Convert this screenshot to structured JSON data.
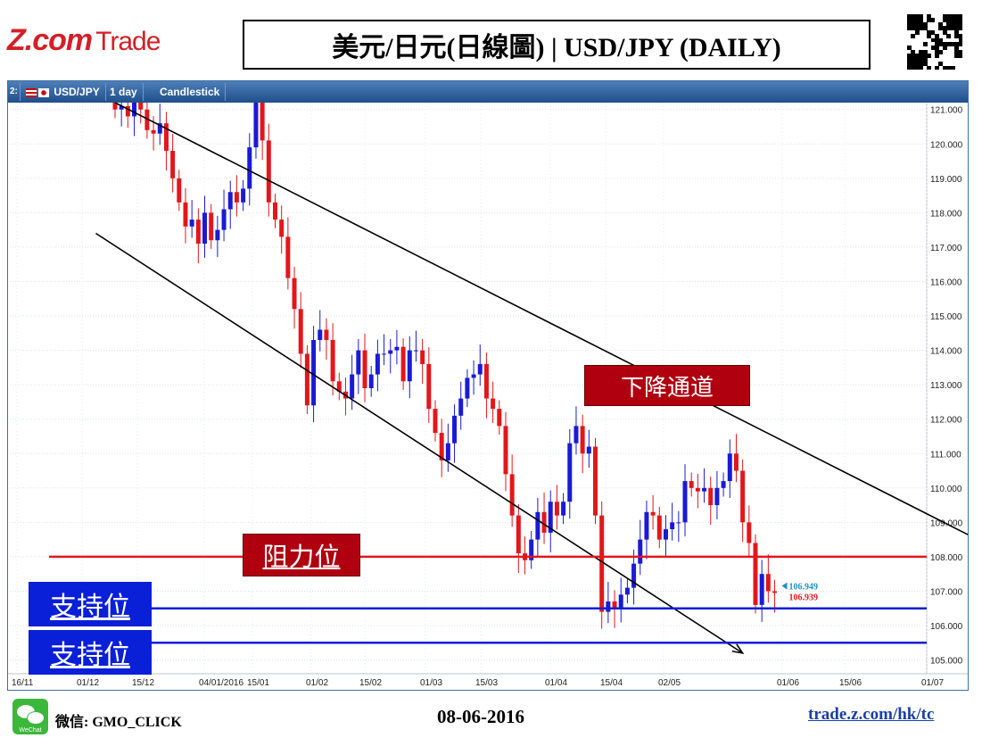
{
  "header": {
    "brand_z": "Z.com",
    "brand_trade": "Trade",
    "title": "美元/日元(日線圖) | USD/JPY (DAILY)"
  },
  "toolbar": {
    "chart_index": "2:",
    "symbol": "USD/JPY",
    "interval": "1 day",
    "style": "Candlestick"
  },
  "annotations": {
    "channel_label": "下降通道",
    "resistance_label": "阻力位",
    "support_label_1": "支持位",
    "support_label_2": "支持位",
    "price_bid": "106.949",
    "price_ask": "106.939"
  },
  "footer": {
    "wechat_icon_text": "WeChat",
    "wechat": "微信: GMO_CLICK",
    "date": "08-06-2016",
    "url": "trade.z.com/hk/tc"
  },
  "colors": {
    "bull": "#1a1ad6",
    "bear": "#e2171b",
    "resistance_line": "#e2171b",
    "support_line": "#0a1fd8",
    "channel_line": "#000000",
    "toolbar": "#2b5d9c",
    "bid_color": "#1e90c8",
    "ask_color": "#e2171b"
  },
  "chart_data": {
    "type": "candlestick",
    "title": "USD/JPY (DAILY)",
    "ylim": [
      104.6,
      121.2
    ],
    "yticks": [
      "121.000",
      "120.000",
      "119.000",
      "118.000",
      "117.000",
      "116.000",
      "115.000",
      "114.000",
      "113.000",
      "112.000",
      "111.000",
      "110.000",
      "109.000",
      "108.000",
      "107.000",
      "106.000",
      "105.000"
    ],
    "xticks": [
      "16/11",
      "01/12",
      "15/12",
      "04/01/2016",
      "15/01",
      "01/02",
      "15/02",
      "01/03",
      "15/03",
      "01/04",
      "15/04",
      "02/05",
      "01/06",
      "15/06",
      "01/07"
    ],
    "resistance": 108.0,
    "supports": [
      106.5,
      105.5
    ],
    "channel": {
      "upper": [
        [
          0,
          121.2
        ],
        [
          140,
          108.0
        ]
      ],
      "lower": [
        [
          -3,
          117.4
        ],
        [
          98,
          105.2
        ]
      ]
    },
    "closes": [
      121.0,
      121.1,
      120.8,
      121.2,
      121.0,
      120.4,
      120.3,
      120.6,
      119.8,
      119.0,
      118.3,
      117.6,
      117.8,
      117.1,
      118.0,
      117.2,
      117.5,
      118.1,
      118.6,
      118.3,
      118.7,
      119.9,
      121.2,
      120.1,
      118.3,
      117.8,
      117.3,
      116.1,
      115.2,
      113.9,
      112.4,
      114.3,
      114.6,
      114.3,
      113.1,
      112.8,
      112.6,
      113.3,
      114.0,
      112.9,
      113.3,
      113.9,
      113.9,
      114.0,
      114.1,
      113.1,
      114.0,
      114.0,
      113.6,
      112.3,
      111.6,
      110.8,
      111.3,
      112.1,
      112.6,
      113.2,
      113.3,
      113.6,
      112.6,
      112.3,
      111.8,
      110.4,
      109.2,
      108.1,
      107.9,
      108.5,
      109.3,
      108.7,
      109.6,
      109.2,
      109.6,
      111.3,
      111.8,
      111.0,
      111.2,
      109.2,
      106.4,
      106.7,
      106.5,
      106.9,
      107.1,
      107.8,
      108.5,
      109.3,
      109.2,
      108.5,
      108.8,
      109.0,
      109.0,
      110.2,
      110.0,
      109.9,
      110.0,
      109.5,
      110.0,
      110.2,
      111.0,
      110.5,
      109.0,
      108.4,
      106.6,
      107.5,
      107.0,
      106.95
    ]
  }
}
